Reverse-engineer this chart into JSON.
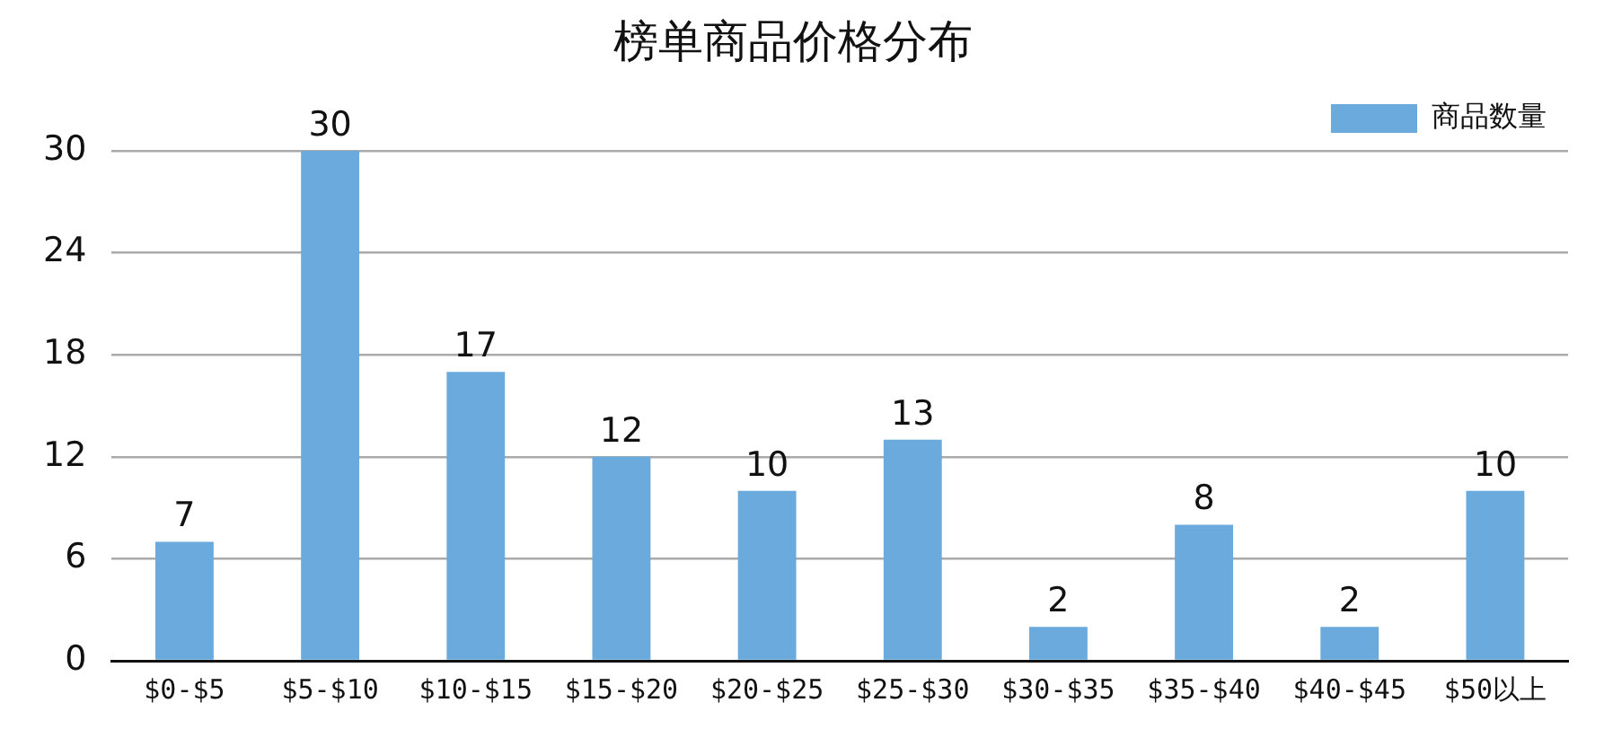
{
  "chart_data": {
    "type": "bar",
    "title": "榜单商品价格分布",
    "categories": [
      "$0-$5",
      "$5-$10",
      "$10-$15",
      "$15-$20",
      "$20-$25",
      "$25-$30",
      "$30-$35",
      "$35-$40",
      "$40-$45",
      "$50以上"
    ],
    "series": [
      {
        "name": "商品数量",
        "color": "#6aaadd",
        "values": [
          7,
          30,
          17,
          12,
          10,
          13,
          2,
          8,
          2,
          10
        ]
      }
    ],
    "ylim": [
      0,
      30
    ],
    "yticks": [
      0,
      6,
      12,
      18,
      24,
      30
    ],
    "grid": "y",
    "legend": "top right",
    "data_labels": true
  }
}
